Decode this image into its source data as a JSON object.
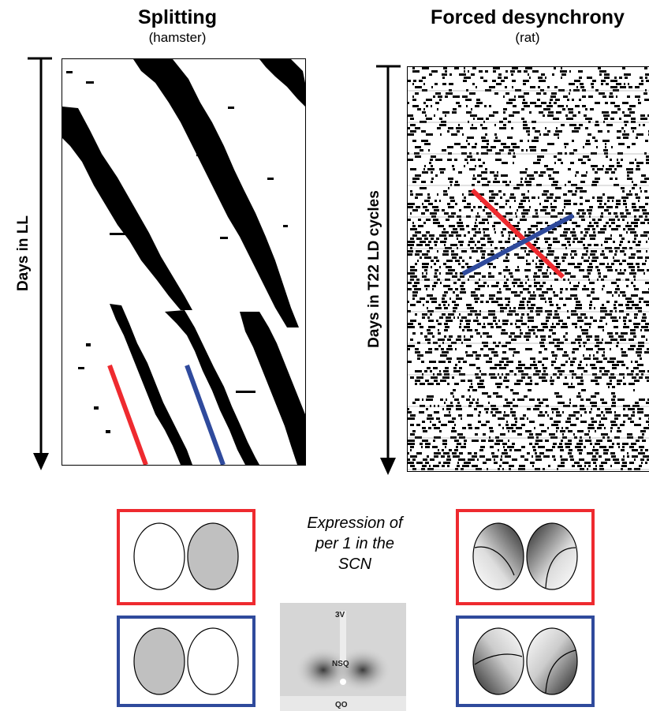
{
  "left_panel": {
    "title": "Splitting",
    "subtitle": "(hamster)",
    "axis_label": "Days in LL"
  },
  "right_panel": {
    "title": "Forced desynchrony",
    "subtitle": "(rat)",
    "axis_label": "Days in T22 LD cycles"
  },
  "caption": {
    "line1": "Expression of",
    "line2": "per 1 in the",
    "line3": "SCN"
  },
  "micrograph": {
    "label_ventricle": "3V",
    "label_nucleus": "NSQ",
    "label_chiasm": "QO"
  },
  "colors": {
    "red": "#ee2a2f",
    "blue": "#2f4a9c",
    "gray_fill": "#c0c0c0",
    "activity": "#000000"
  }
}
